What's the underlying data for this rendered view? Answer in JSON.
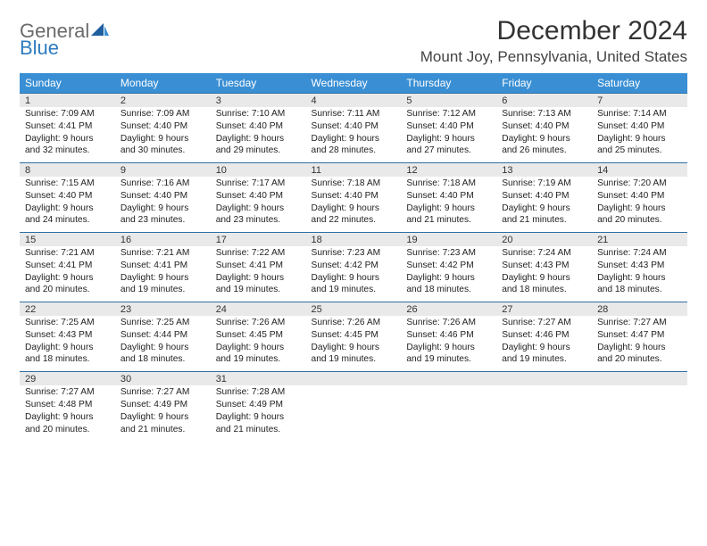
{
  "logo": {
    "text1": "General",
    "text2": "Blue"
  },
  "title": "December 2024",
  "location": "Mount Joy, Pennsylvania, United States",
  "colors": {
    "header_band": "#3a8fd4",
    "rule": "#2e6fa3",
    "daynum_bg": "#e9e9e9",
    "logo_gray": "#6b6b6b",
    "logo_blue": "#2f7bbf"
  },
  "day_headers": [
    "Sunday",
    "Monday",
    "Tuesday",
    "Wednesday",
    "Thursday",
    "Friday",
    "Saturday"
  ],
  "weeks": [
    [
      {
        "n": "1",
        "sr": "7:09 AM",
        "ss": "4:41 PM",
        "dl": "9 hours and 32 minutes."
      },
      {
        "n": "2",
        "sr": "7:09 AM",
        "ss": "4:40 PM",
        "dl": "9 hours and 30 minutes."
      },
      {
        "n": "3",
        "sr": "7:10 AM",
        "ss": "4:40 PM",
        "dl": "9 hours and 29 minutes."
      },
      {
        "n": "4",
        "sr": "7:11 AM",
        "ss": "4:40 PM",
        "dl": "9 hours and 28 minutes."
      },
      {
        "n": "5",
        "sr": "7:12 AM",
        "ss": "4:40 PM",
        "dl": "9 hours and 27 minutes."
      },
      {
        "n": "6",
        "sr": "7:13 AM",
        "ss": "4:40 PM",
        "dl": "9 hours and 26 minutes."
      },
      {
        "n": "7",
        "sr": "7:14 AM",
        "ss": "4:40 PM",
        "dl": "9 hours and 25 minutes."
      }
    ],
    [
      {
        "n": "8",
        "sr": "7:15 AM",
        "ss": "4:40 PM",
        "dl": "9 hours and 24 minutes."
      },
      {
        "n": "9",
        "sr": "7:16 AM",
        "ss": "4:40 PM",
        "dl": "9 hours and 23 minutes."
      },
      {
        "n": "10",
        "sr": "7:17 AM",
        "ss": "4:40 PM",
        "dl": "9 hours and 23 minutes."
      },
      {
        "n": "11",
        "sr": "7:18 AM",
        "ss": "4:40 PM",
        "dl": "9 hours and 22 minutes."
      },
      {
        "n": "12",
        "sr": "7:18 AM",
        "ss": "4:40 PM",
        "dl": "9 hours and 21 minutes."
      },
      {
        "n": "13",
        "sr": "7:19 AM",
        "ss": "4:40 PM",
        "dl": "9 hours and 21 minutes."
      },
      {
        "n": "14",
        "sr": "7:20 AM",
        "ss": "4:40 PM",
        "dl": "9 hours and 20 minutes."
      }
    ],
    [
      {
        "n": "15",
        "sr": "7:21 AM",
        "ss": "4:41 PM",
        "dl": "9 hours and 20 minutes."
      },
      {
        "n": "16",
        "sr": "7:21 AM",
        "ss": "4:41 PM",
        "dl": "9 hours and 19 minutes."
      },
      {
        "n": "17",
        "sr": "7:22 AM",
        "ss": "4:41 PM",
        "dl": "9 hours and 19 minutes."
      },
      {
        "n": "18",
        "sr": "7:23 AM",
        "ss": "4:42 PM",
        "dl": "9 hours and 19 minutes."
      },
      {
        "n": "19",
        "sr": "7:23 AM",
        "ss": "4:42 PM",
        "dl": "9 hours and 18 minutes."
      },
      {
        "n": "20",
        "sr": "7:24 AM",
        "ss": "4:43 PM",
        "dl": "9 hours and 18 minutes."
      },
      {
        "n": "21",
        "sr": "7:24 AM",
        "ss": "4:43 PM",
        "dl": "9 hours and 18 minutes."
      }
    ],
    [
      {
        "n": "22",
        "sr": "7:25 AM",
        "ss": "4:43 PM",
        "dl": "9 hours and 18 minutes."
      },
      {
        "n": "23",
        "sr": "7:25 AM",
        "ss": "4:44 PM",
        "dl": "9 hours and 18 minutes."
      },
      {
        "n": "24",
        "sr": "7:26 AM",
        "ss": "4:45 PM",
        "dl": "9 hours and 19 minutes."
      },
      {
        "n": "25",
        "sr": "7:26 AM",
        "ss": "4:45 PM",
        "dl": "9 hours and 19 minutes."
      },
      {
        "n": "26",
        "sr": "7:26 AM",
        "ss": "4:46 PM",
        "dl": "9 hours and 19 minutes."
      },
      {
        "n": "27",
        "sr": "7:27 AM",
        "ss": "4:46 PM",
        "dl": "9 hours and 19 minutes."
      },
      {
        "n": "28",
        "sr": "7:27 AM",
        "ss": "4:47 PM",
        "dl": "9 hours and 20 minutes."
      }
    ],
    [
      {
        "n": "29",
        "sr": "7:27 AM",
        "ss": "4:48 PM",
        "dl": "9 hours and 20 minutes."
      },
      {
        "n": "30",
        "sr": "7:27 AM",
        "ss": "4:49 PM",
        "dl": "9 hours and 21 minutes."
      },
      {
        "n": "31",
        "sr": "7:28 AM",
        "ss": "4:49 PM",
        "dl": "9 hours and 21 minutes."
      },
      null,
      null,
      null,
      null
    ]
  ],
  "labels": {
    "sunrise": "Sunrise:",
    "sunset": "Sunset:",
    "daylight": "Daylight:"
  }
}
